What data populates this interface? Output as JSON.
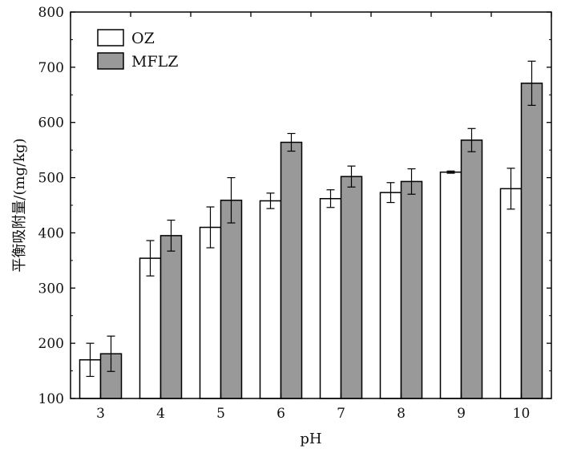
{
  "chart_data": {
    "type": "bar",
    "categories": [
      "3",
      "4",
      "5",
      "6",
      "7",
      "8",
      "9",
      "10"
    ],
    "xlabel": "pH",
    "ylabel": "平衡吸附量/(mg/kg)",
    "ylim": [
      100,
      800
    ],
    "yticks": [
      100,
      200,
      300,
      400,
      500,
      600,
      700,
      800
    ],
    "grid": false,
    "legend_position": "top-left",
    "series": [
      {
        "name": "OZ",
        "color": "#ffffff",
        "values": [
          170,
          354,
          410,
          458,
          462,
          473,
          510,
          480
        ],
        "errors": [
          30,
          32,
          37,
          14,
          16,
          18,
          2,
          37
        ]
      },
      {
        "name": "MFLZ",
        "color": "#999999",
        "values": [
          181,
          395,
          459,
          564,
          502,
          493,
          568,
          671
        ],
        "errors": [
          32,
          28,
          41,
          16,
          19,
          23,
          21,
          40
        ]
      }
    ]
  }
}
